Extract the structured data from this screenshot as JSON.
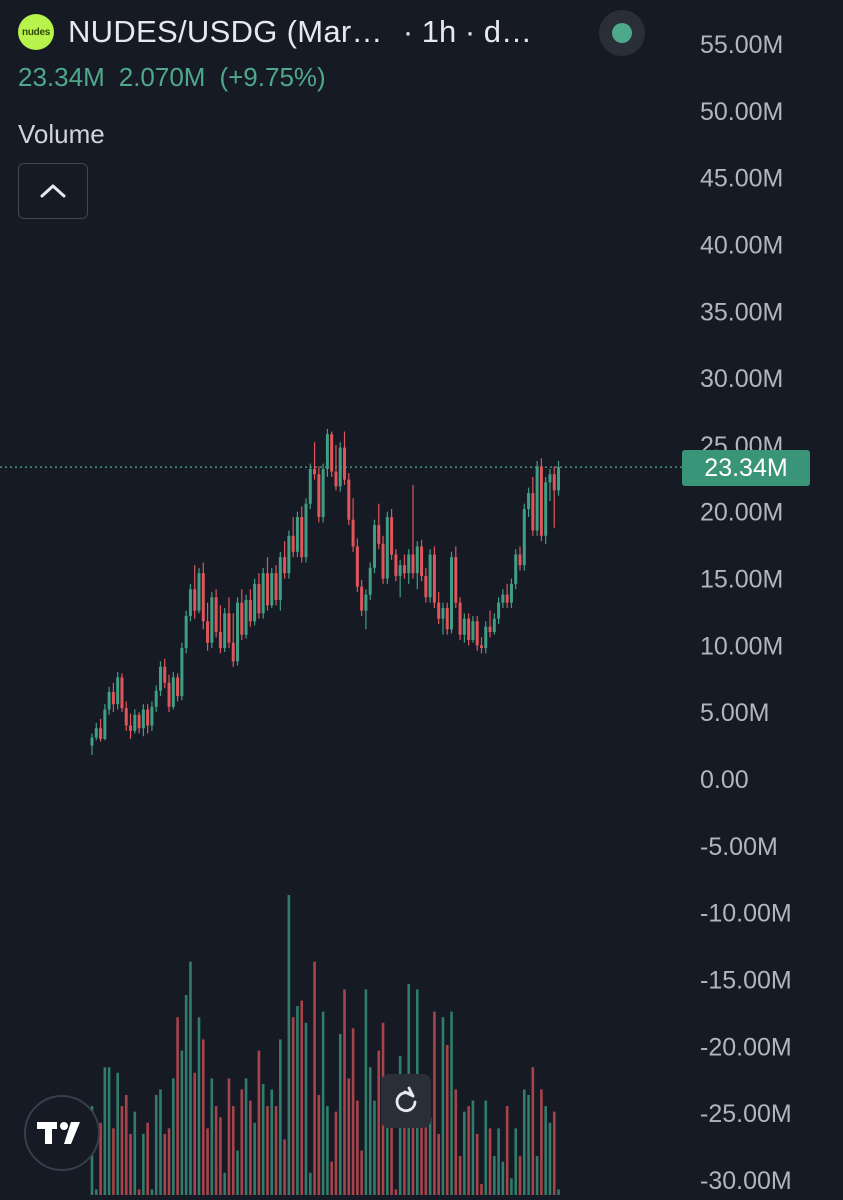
{
  "header": {
    "pair_title": "NUDES/USDG (Mar…",
    "interval": "· 1h · d…",
    "logo_text": "nudes",
    "last_price": "23.34M",
    "change_abs": "2.070M",
    "change_pct": "(+9.75%)",
    "volume_label": "Volume"
  },
  "price_tag": "23.34M",
  "colors": {
    "up": "#3f9e84",
    "down": "#e0555a",
    "up_volume": "#2f7d6a",
    "down_volume": "#a84349",
    "background": "#161a25",
    "axis_text": "#b2b5be",
    "price_line": "#4ea98a"
  },
  "icons": {
    "collapse": "chevron-up-icon",
    "reset": "reset-rotate-icon",
    "live": "live-status-dot-icon",
    "brand": "tradingview-logo-icon"
  },
  "chart_data": {
    "type": "candlestick",
    "series": [
      {
        "name": "NUDES/USDG",
        "ohlc": [
          [
            2.5,
            3.4,
            1.8,
            3.1
          ],
          [
            3.1,
            4.2,
            2.9,
            3.8
          ],
          [
            3.8,
            4.5,
            2.8,
            3.0
          ],
          [
            3.0,
            5.6,
            2.9,
            5.2
          ],
          [
            5.2,
            6.9,
            4.8,
            6.5
          ],
          [
            6.5,
            7.2,
            5.0,
            5.6
          ],
          [
            5.6,
            8.0,
            5.2,
            7.6
          ],
          [
            7.6,
            7.9,
            5.0,
            5.3
          ],
          [
            5.3,
            5.8,
            3.6,
            4.0
          ],
          [
            4.0,
            4.9,
            3.0,
            3.6
          ],
          [
            3.6,
            5.2,
            3.4,
            4.8
          ],
          [
            4.8,
            5.0,
            3.4,
            3.8
          ],
          [
            3.8,
            5.6,
            3.2,
            5.2
          ],
          [
            5.2,
            5.6,
            3.4,
            4.0
          ],
          [
            4.0,
            5.8,
            3.6,
            5.4
          ],
          [
            5.4,
            7.0,
            5.0,
            6.6
          ],
          [
            6.6,
            8.8,
            6.2,
            8.4
          ],
          [
            8.4,
            9.0,
            6.8,
            7.2
          ],
          [
            7.2,
            7.8,
            5.0,
            5.4
          ],
          [
            5.4,
            8.0,
            5.2,
            7.6
          ],
          [
            7.6,
            7.9,
            5.8,
            6.2
          ],
          [
            6.2,
            10.2,
            5.9,
            9.8
          ],
          [
            9.8,
            12.6,
            9.4,
            12.2
          ],
          [
            12.2,
            14.6,
            11.8,
            14.2
          ],
          [
            14.2,
            16.0,
            12.0,
            12.6
          ],
          [
            12.6,
            15.8,
            12.4,
            15.4
          ],
          [
            15.4,
            16.2,
            11.2,
            11.8
          ],
          [
            11.8,
            13.2,
            9.6,
            10.2
          ],
          [
            10.2,
            14.0,
            9.8,
            13.6
          ],
          [
            13.6,
            14.2,
            10.6,
            11.0
          ],
          [
            11.0,
            13.0,
            9.4,
            9.8
          ],
          [
            9.8,
            12.8,
            9.5,
            12.4
          ],
          [
            12.4,
            13.6,
            9.8,
            10.2
          ],
          [
            10.2,
            12.4,
            8.4,
            8.8
          ],
          [
            8.8,
            13.6,
            8.5,
            13.2
          ],
          [
            13.2,
            14.2,
            10.4,
            10.8
          ],
          [
            10.8,
            13.8,
            10.5,
            13.4
          ],
          [
            13.4,
            14.2,
            11.4,
            11.8
          ],
          [
            11.8,
            15.0,
            11.5,
            14.6
          ],
          [
            14.6,
            15.4,
            12.0,
            12.4
          ],
          [
            12.4,
            15.8,
            12.0,
            15.4
          ],
          [
            15.4,
            16.6,
            12.6,
            13.0
          ],
          [
            13.0,
            15.8,
            12.8,
            15.4
          ],
          [
            15.4,
            16.0,
            13.0,
            13.4
          ],
          [
            13.4,
            17.0,
            12.6,
            16.6
          ],
          [
            16.6,
            17.8,
            15.0,
            15.4
          ],
          [
            15.4,
            18.6,
            15.0,
            18.2
          ],
          [
            18.2,
            19.6,
            16.6,
            17.0
          ],
          [
            17.0,
            20.0,
            16.6,
            19.6
          ],
          [
            19.6,
            20.4,
            16.2,
            16.6
          ],
          [
            16.6,
            21.0,
            16.2,
            20.6
          ],
          [
            20.6,
            23.6,
            20.2,
            23.2
          ],
          [
            23.2,
            25.2,
            22.4,
            22.8
          ],
          [
            22.8,
            23.4,
            19.2,
            19.6
          ],
          [
            19.6,
            23.6,
            19.2,
            23.2
          ],
          [
            23.2,
            26.2,
            22.6,
            25.8
          ],
          [
            25.8,
            26.0,
            22.6,
            23.0
          ],
          [
            23.0,
            25.0,
            21.6,
            21.9
          ],
          [
            21.9,
            25.2,
            21.5,
            24.8
          ],
          [
            24.8,
            26.0,
            22.0,
            22.4
          ],
          [
            22.4,
            22.9,
            19.0,
            19.4
          ],
          [
            19.4,
            21.0,
            17.0,
            17.4
          ],
          [
            17.4,
            18.0,
            14.0,
            14.4
          ],
          [
            14.4,
            14.9,
            12.2,
            12.6
          ],
          [
            12.6,
            14.2,
            11.2,
            13.8
          ],
          [
            13.8,
            16.2,
            13.4,
            15.8
          ],
          [
            15.8,
            19.4,
            15.4,
            19.0
          ],
          [
            19.0,
            20.6,
            17.2,
            17.6
          ],
          [
            17.6,
            18.2,
            14.6,
            15.0
          ],
          [
            15.0,
            20.0,
            14.6,
            19.6
          ],
          [
            19.6,
            20.2,
            16.4,
            16.8
          ],
          [
            16.8,
            17.2,
            14.8,
            15.2
          ],
          [
            15.2,
            16.4,
            13.6,
            16.0
          ],
          [
            16.0,
            16.8,
            15.0,
            15.4
          ],
          [
            15.4,
            17.2,
            14.6,
            16.8
          ],
          [
            16.8,
            22.0,
            15.0,
            15.4
          ],
          [
            15.4,
            17.8,
            14.2,
            17.4
          ],
          [
            17.4,
            17.9,
            14.8,
            15.2
          ],
          [
            15.2,
            15.8,
            13.2,
            13.6
          ],
          [
            13.6,
            17.2,
            13.2,
            16.8
          ],
          [
            16.8,
            17.4,
            12.8,
            13.2
          ],
          [
            13.2,
            14.0,
            11.6,
            12.0
          ],
          [
            12.0,
            13.2,
            10.8,
            12.8
          ],
          [
            12.8,
            13.2,
            10.8,
            11.2
          ],
          [
            11.2,
            17.0,
            10.9,
            16.6
          ],
          [
            16.6,
            17.4,
            12.8,
            13.2
          ],
          [
            13.2,
            13.6,
            10.4,
            10.8
          ],
          [
            10.8,
            12.4,
            10.2,
            12.0
          ],
          [
            12.0,
            12.4,
            10.0,
            10.4
          ],
          [
            10.4,
            12.2,
            10.2,
            11.8
          ],
          [
            11.8,
            12.2,
            9.6,
            10.0
          ],
          [
            10.0,
            10.6,
            9.4,
            9.8
          ],
          [
            9.8,
            11.8,
            9.4,
            11.4
          ],
          [
            11.4,
            12.6,
            10.6,
            11.0
          ],
          [
            11.0,
            12.4,
            10.8,
            12.0
          ],
          [
            12.0,
            13.6,
            11.6,
            13.2
          ],
          [
            13.2,
            14.2,
            12.8,
            13.8
          ],
          [
            13.8,
            14.6,
            12.8,
            13.2
          ],
          [
            13.2,
            15.0,
            12.8,
            14.6
          ],
          [
            14.6,
            17.2,
            14.2,
            16.8
          ],
          [
            16.8,
            17.4,
            15.6,
            16.0
          ],
          [
            16.0,
            20.6,
            15.6,
            20.2
          ],
          [
            20.2,
            21.8,
            19.6,
            21.4
          ],
          [
            21.4,
            22.6,
            18.2,
            18.6
          ],
          [
            18.6,
            23.8,
            18.2,
            23.4
          ],
          [
            23.4,
            24.0,
            17.8,
            18.2
          ],
          [
            18.2,
            22.6,
            17.6,
            22.2
          ],
          [
            22.2,
            23.2,
            20.8,
            22.8
          ],
          [
            22.8,
            23.4,
            18.8,
            21.6
          ],
          [
            21.6,
            23.8,
            21.2,
            23.34
          ]
        ]
      },
      {
        "name": "Volume",
        "values": [
          16,
          1,
          13,
          23,
          23,
          12,
          22,
          16,
          18,
          11,
          15,
          1,
          11,
          13,
          1,
          18,
          19,
          11,
          12,
          21,
          32,
          26,
          36,
          42,
          22,
          32,
          28,
          12,
          21,
          16,
          14,
          4,
          21,
          16,
          8,
          19,
          21,
          17,
          13,
          26,
          20,
          16,
          19,
          16,
          28,
          10,
          54,
          32,
          34,
          35,
          31,
          4,
          42,
          18,
          33,
          16,
          6,
          15,
          29,
          37,
          21,
          30,
          17,
          8,
          37,
          23,
          17,
          26,
          31,
          14,
          15,
          1,
          25,
          13,
          38,
          14,
          37,
          13,
          20,
          14,
          33,
          11,
          32,
          27,
          33,
          19,
          7,
          15,
          16,
          17,
          11,
          2,
          17,
          12,
          7,
          12,
          6,
          16,
          3,
          12,
          7,
          19,
          18,
          23,
          7,
          19,
          16,
          13,
          15,
          1
        ]
      }
    ],
    "y_axis": {
      "ticks": [
        "55.00M",
        "50.00M",
        "45.00M",
        "40.00M",
        "35.00M",
        "30.00M",
        "25.00M",
        "20.00M",
        "15.00M",
        "10.00M",
        "5.00M",
        "0.00",
        "-5.00M",
        "-10.00M",
        "-15.00M",
        "-20.00M",
        "-25.00M",
        "-30.00M"
      ],
      "range": [
        -30,
        55
      ],
      "position": "right"
    },
    "last_value": 23.34,
    "grid": false
  }
}
